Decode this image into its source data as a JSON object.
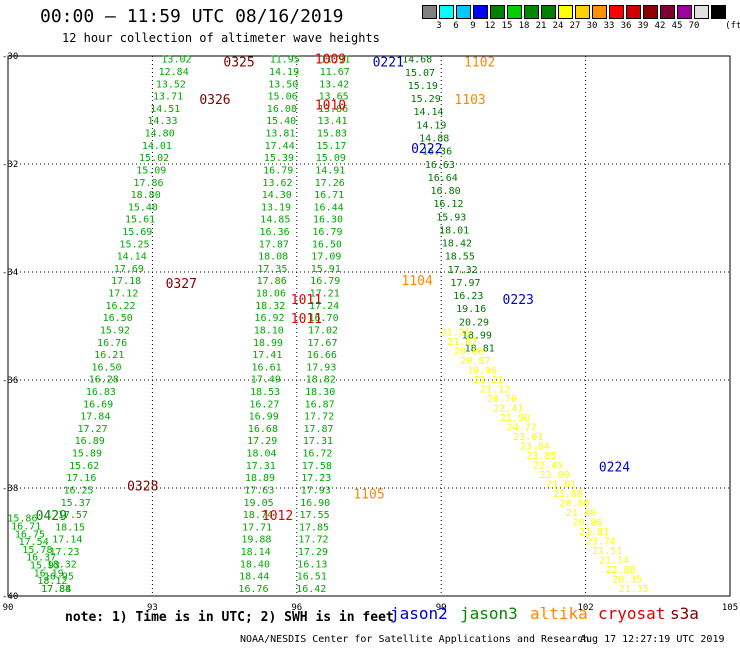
{
  "title": "00:00 – 11:59 UTC 08/16/2019",
  "subtitle": "12 hour collection of altimeter wave heights",
  "legend": {
    "colors": [
      "#808080",
      "#00ffff",
      "#00c8ff",
      "#0000ff",
      "#008000",
      "#00d000",
      "#008800",
      "#008000",
      "#ffff00",
      "#ffd000",
      "#ff9000",
      "#ff0000",
      "#d00000",
      "#900000",
      "#800030",
      "#a000a0",
      "#e0e0e0",
      "#000000"
    ],
    "labels": [
      "3",
      "6",
      "9",
      "12",
      "15",
      "18",
      "21",
      "24",
      "27",
      "30",
      "33",
      "36",
      "39",
      "42",
      "45",
      "70"
    ],
    "unit": "(ft)"
  },
  "note": "note: 1) Time is in UTC; 2) SWH is in feet",
  "satellites": [
    {
      "name": "jason2",
      "color": "#0000cc"
    },
    {
      "name": "jason3",
      "color": "#008800"
    },
    {
      "name": "altika",
      "color": "#ff8800"
    },
    {
      "name": "cryosat",
      "color": "#dd0000"
    },
    {
      "name": "s3a",
      "color": "#800000"
    }
  ],
  "footer_left": "NOAA/NESDIS Center for Satellite Applications and Research",
  "footer_right": "Aug 17 12:27:19 UTC 2019",
  "chart_data": {
    "type": "scatter",
    "title": "00:00 – 11:59 UTC 08/16/2019",
    "subtitle": "12 hour collection of altimeter wave heights",
    "x_ticks": [
      "90",
      "93",
      "96",
      "99",
      "102",
      "105"
    ],
    "y_ticks": [
      "-30",
      "-32",
      "-34",
      "-36",
      "-38",
      "-40"
    ],
    "xlim": [
      90,
      105
    ],
    "ylim": [
      -40,
      -30
    ],
    "grid": true,
    "time_labels": [
      {
        "text": "0325",
        "lon": 94.8,
        "lat": -30.1,
        "color": "#800000"
      },
      {
        "text": "0326",
        "lon": 94.3,
        "lat": -30.8,
        "color": "#800000"
      },
      {
        "text": "1009",
        "lon": 96.7,
        "lat": -30.05,
        "color": "#dd0000"
      },
      {
        "text": "0221",
        "lon": 97.9,
        "lat": -30.1,
        "color": "#0000cc"
      },
      {
        "text": "1102",
        "lon": 99.8,
        "lat": -30.1,
        "color": "#ff8800"
      },
      {
        "text": "1010",
        "lon": 96.7,
        "lat": -30.9,
        "color": "#dd0000"
      },
      {
        "text": "1103",
        "lon": 99.6,
        "lat": -30.8,
        "color": "#ff8800"
      },
      {
        "text": "0222",
        "lon": 98.7,
        "lat": -31.7,
        "color": "#0000cc"
      },
      {
        "text": "0327",
        "lon": 93.6,
        "lat": -34.2,
        "color": "#800000"
      },
      {
        "text": "1104",
        "lon": 98.5,
        "lat": -34.15,
        "color": "#ff8800"
      },
      {
        "text": "1011",
        "lon": 96.2,
        "lat": -34.5,
        "color": "#dd0000"
      },
      {
        "text": "1011",
        "lon": 96.2,
        "lat": -34.85,
        "color": "#dd0000"
      },
      {
        "text": "0223",
        "lon": 100.6,
        "lat": -34.5,
        "color": "#0000cc"
      },
      {
        "text": "0224",
        "lon": 102.6,
        "lat": -37.6,
        "color": "#0000cc"
      },
      {
        "text": "0328",
        "lon": 92.8,
        "lat": -37.95,
        "color": "#800000"
      },
      {
        "text": "1105",
        "lon": 97.5,
        "lat": -38.1,
        "color": "#ff8800"
      },
      {
        "text": "1012",
        "lon": 95.6,
        "lat": -38.5,
        "color": "#dd0000"
      },
      {
        "text": "0429",
        "lon": 90.9,
        "lat": -38.5,
        "color": "#008800"
      }
    ],
    "tracks": [
      {
        "name": "s3a 0325-0328",
        "color": "#00aa00",
        "lon_start": 93.5,
        "lat_start": -30.05,
        "lon_end": 91.0,
        "lat_end": -39.85,
        "values": [
          "13.02",
          "12.84",
          "13.52",
          "13.71",
          "14.51",
          "14.33",
          "14.80",
          "14.01",
          "15.02",
          "15.09",
          "17.86",
          "18.80",
          "15.40",
          "15.61",
          "15.69",
          "15.25",
          "14.14",
          "17.69",
          "17.18",
          "17.12",
          "16.22",
          "16.50",
          "15.92",
          "16.76",
          "16.21",
          "16.50",
          "16.28",
          "16.83",
          "16.69",
          "17.84",
          "17.27",
          "16.89",
          "15.89",
          "15.62",
          "17.16",
          "16.25",
          "15.37",
          "17.57",
          "18.15",
          "17.14",
          "17.23",
          "18.32",
          "16.95",
          "17.84"
        ]
      },
      {
        "name": "s3a 0429",
        "color": "#00aa00",
        "lon_start": 90.3,
        "lat_start": -38.55,
        "lon_end": 91.0,
        "lat_end": -39.85,
        "values": [
          "15.86",
          "16.71",
          "16.75",
          "17.54",
          "15.78",
          "16.37",
          "15.93",
          "16.19",
          "18.12",
          "17.88"
        ]
      },
      {
        "name": "cryosat 1009-1012",
        "color": "#00aa00",
        "lon_start": 95.75,
        "lat_start": -30.05,
        "lon_end": 95.1,
        "lat_end": -39.85,
        "values": [
          "11.95",
          "14.19",
          "13.50",
          "15.06",
          "16.08",
          "15.40",
          "13.81",
          "17.44",
          "15.39",
          "16.79",
          "13.62",
          "14.30",
          "13.19",
          "14.85",
          "16.36",
          "17.87",
          "18.08",
          "17.35",
          "17.86",
          "18.06",
          "18.32",
          "16.92",
          "18.10",
          "18.99",
          "17.41",
          "16.61",
          "17.49",
          "18.53",
          "16.27",
          "16.99",
          "16.68",
          "17.29",
          "18.04",
          "17.31",
          "18.89",
          "17.63",
          "19.05",
          "18.74",
          "17.71",
          "19.88",
          "18.14",
          "18.40",
          "18.44",
          "16.76"
        ]
      },
      {
        "name": "jason3 1009-1105",
        "color": "#00aa00",
        "lon_start": 96.8,
        "lat_start": -30.05,
        "lon_end": 96.3,
        "lat_end": -39.85,
        "values": [
          "11.91",
          "11.67",
          "13.42",
          "13.65",
          "13.86",
          "13.41",
          "15.83",
          "15.17",
          "15.09",
          "14.91",
          "17.26",
          "16.71",
          "16.44",
          "16.30",
          "16.79",
          "16.50",
          "17.09",
          "15.91",
          "16.79",
          "17.21",
          "17.24",
          "16.70",
          "17.02",
          "17.67",
          "16.66",
          "17.93",
          "18.82",
          "18.30",
          "16.87",
          "17.72",
          "17.87",
          "17.31",
          "16.72",
          "17.58",
          "17.23",
          "17.93",
          "16.90",
          "17.55",
          "17.85",
          "17.72",
          "17.29",
          "16.13",
          "16.51",
          "16.42"
        ]
      },
      {
        "name": "jason2 0221-0224",
        "color": "#007700",
        "lon_start": 98.5,
        "lat_start": -30.05,
        "lon_end": 99.8,
        "lat_end": -35.4,
        "values": [
          "14.68",
          "15.07",
          "15.19",
          "15.29",
          "14.14",
          "14.19",
          "14.88",
          "16.36",
          "16.63",
          "16.64",
          "16.80",
          "16.12",
          "15.93",
          "18.01",
          "18.42",
          "18.55",
          "17.32",
          "17.97",
          "16.23",
          "19.16",
          "20.29",
          "18.99",
          "18.81"
        ]
      },
      {
        "name": "altika 1102-1105",
        "color": "#ffff00",
        "lon_start": 99.3,
        "lat_start": -35.1,
        "lon_end": 103.0,
        "lat_end": -39.85,
        "values": [
          "21.25",
          "21.67",
          "20.86",
          "20.87",
          "19.96",
          "21.21",
          "21.12",
          "20.70",
          "22.41",
          "21.90",
          "24.77",
          "23.01",
          "23.84",
          "23.85",
          "22.49",
          "23.09",
          "21.81",
          "21.68",
          "20.80",
          "21.40",
          "20.96",
          "21.81",
          "23.74",
          "21.51",
          "21.14",
          "22.88",
          "20.35",
          "21.35"
        ]
      }
    ]
  }
}
